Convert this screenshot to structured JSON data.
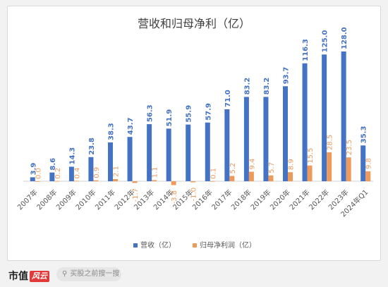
{
  "chart_data": {
    "type": "bar",
    "title": "营收和归母净利（亿）",
    "categories": [
      "2007年",
      "2008年",
      "2009年",
      "2010年",
      "2011年",
      "2012年",
      "2013年",
      "2014年",
      "2015年",
      "2016年",
      "2017年",
      "2018年",
      "2019年",
      "2020年",
      "2021年",
      "2022年",
      "2023年",
      "2024年Q1"
    ],
    "series": [
      {
        "name": "营收（亿）",
        "color": "#4472C4",
        "values": [
          3.9,
          8.6,
          14.3,
          23.8,
          38.3,
          43.7,
          56.3,
          51.9,
          55.9,
          57.9,
          71.0,
          83.2,
          83.2,
          93.7,
          116.3,
          125.0,
          128.0,
          35.3
        ],
        "labels": [
          "3.9",
          "8.6",
          "14.3",
          "23.8",
          "38.3",
          "43.7",
          "56.3",
          "51.9",
          "55.9",
          "57.9",
          "71.0",
          "83.2",
          "83.2",
          "93.7",
          "116.3",
          "125.0",
          "128.0",
          "35.3"
        ]
      },
      {
        "name": "归母净利润（亿）",
        "color": "#ED9A5B",
        "values": [
          0.0,
          0.2,
          0.4,
          0.9,
          2.1,
          -1.7,
          1.1,
          -3.8,
          -1.0,
          0.1,
          5.2,
          9.4,
          5.7,
          8.9,
          15.5,
          28.5,
          23.5,
          9.8
        ],
        "labels": [
          "0.0",
          "0.2",
          "0.4",
          "0.9",
          "2.1",
          "-1.7",
          "1.1",
          "-3.8",
          "-1.0",
          "0.1",
          "5.2",
          "9.4",
          "5.7",
          "8.9",
          "15.5",
          "28.5",
          "23.5",
          "9.8"
        ]
      }
    ],
    "ylim": [
      -8,
      135
    ],
    "grid": false,
    "legend_position": "bottom"
  },
  "footer": {
    "brand": "市值",
    "brand_badge": "风云",
    "search_placeholder": "买股之前搜一搜"
  }
}
